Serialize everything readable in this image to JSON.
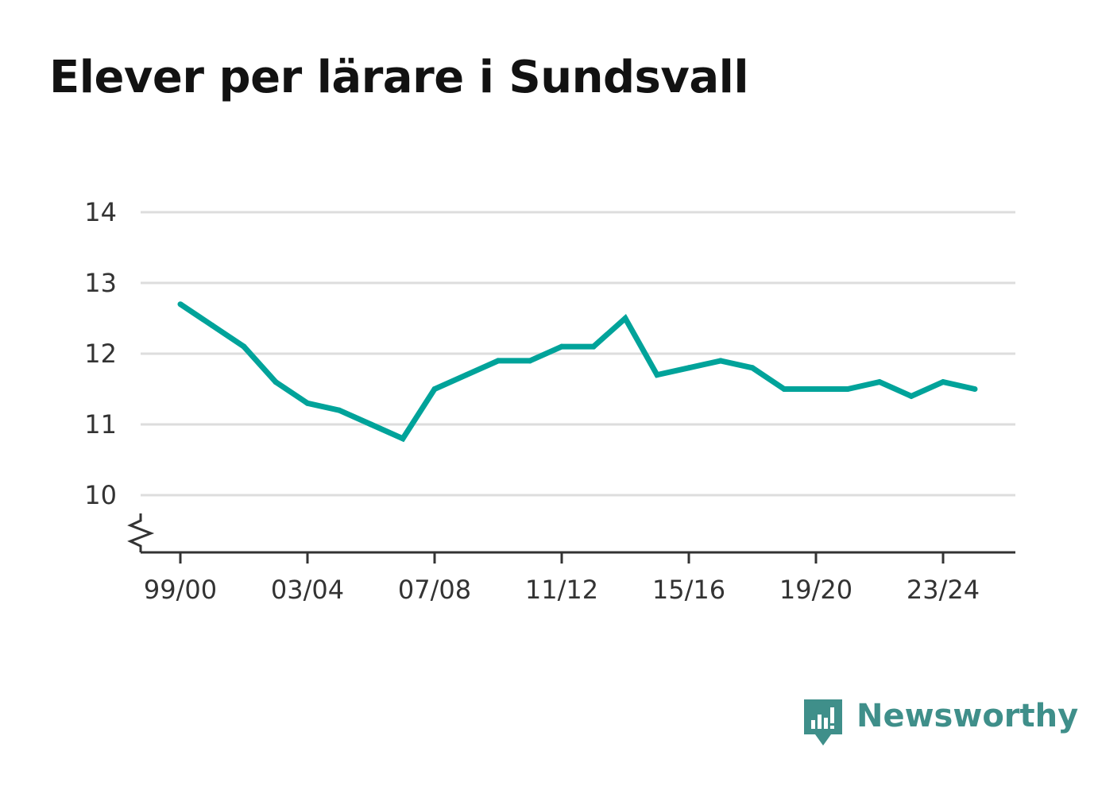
{
  "title": "Elever per lärare i Sundsvall",
  "brand": {
    "name": "Newsworthy",
    "icon": "newsworthy-logo-icon",
    "color": "#3f8f8a"
  },
  "chart_data": {
    "type": "line",
    "title": "Elever per lärare i Sundsvall",
    "xlabel": "",
    "ylabel": "",
    "x": [
      "99/00",
      "00/01",
      "01/02",
      "02/03",
      "03/04",
      "04/05",
      "05/06",
      "06/07",
      "07/08",
      "08/09",
      "09/10",
      "10/11",
      "11/12",
      "12/13",
      "13/14",
      "14/15",
      "15/16",
      "16/17",
      "17/18",
      "18/19",
      "19/20",
      "20/21",
      "21/22",
      "22/23",
      "23/24",
      "24/25"
    ],
    "series": [
      {
        "values": [
          12.7,
          12.4,
          12.1,
          11.6,
          11.3,
          11.2,
          11.0,
          10.8,
          11.5,
          11.7,
          11.9,
          11.9,
          12.1,
          12.1,
          12.5,
          11.7,
          11.8,
          11.9,
          11.8,
          11.5,
          11.5,
          11.5,
          11.6,
          11.4,
          11.6,
          11.5
        ],
        "color": "#00a39a"
      }
    ],
    "x_tick_labels": [
      "99/00",
      "03/04",
      "07/08",
      "11/12",
      "15/16",
      "19/20",
      "23/24"
    ],
    "y_ticks": [
      10,
      11,
      12,
      13,
      14
    ],
    "ylim": [
      9.2,
      14
    ],
    "y_axis_break": true,
    "grid": true,
    "legend": "none",
    "colors": {
      "line": "#00a39a",
      "grid": "#dddddd",
      "axis": "#333333"
    }
  }
}
